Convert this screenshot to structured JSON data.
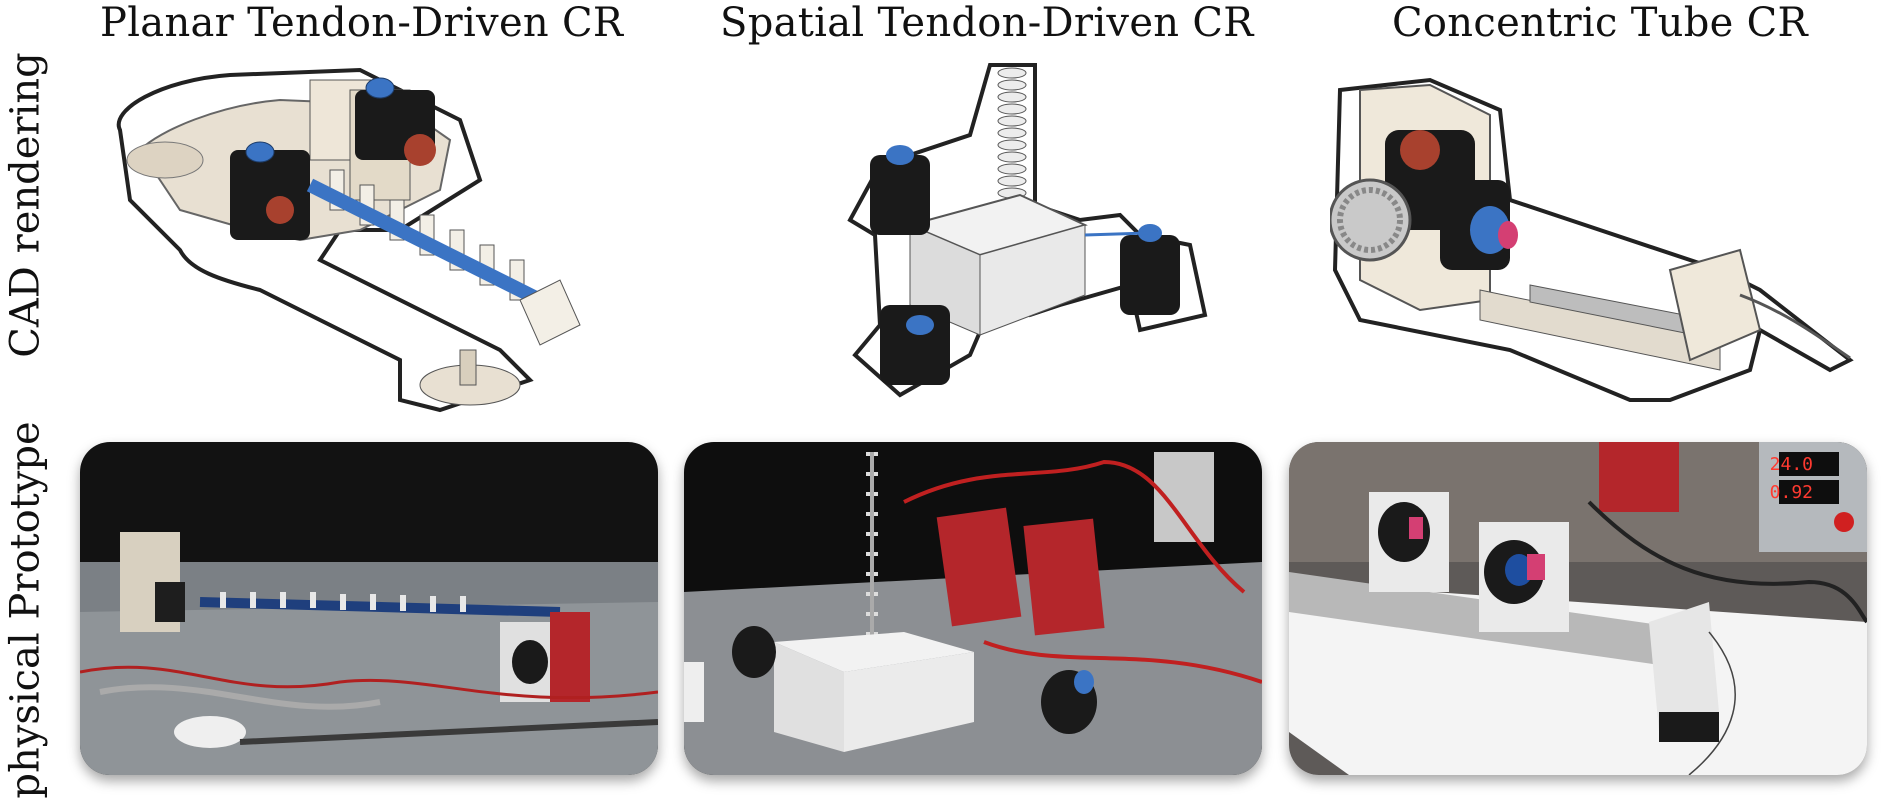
{
  "column_titles": [
    "Planar Tendon-Driven CR",
    "Spatial Tendon-Driven CR",
    "Concentric Tube CR"
  ],
  "row_labels": [
    "CAD rendering",
    "physical Prototype"
  ],
  "photo_readouts": [
    "24.0",
    "0.92"
  ],
  "icons": {
    "cad_planar": "planar-tendon-robot-cad",
    "cad_spatial": "spatial-tendon-robot-cad",
    "cad_concentric": "concentric-tube-robot-cad",
    "photo_planar": "planar-robot-photo",
    "photo_spatial": "spatial-robot-photo",
    "photo_concentric": "concentric-robot-photo"
  },
  "colors": {
    "motor_black": "#1a1a1a",
    "spool_blue": "#3b74c4",
    "board_red": "#c3262e",
    "base_beige": "#e8e0d2",
    "plate_white": "#f2f2f2"
  }
}
